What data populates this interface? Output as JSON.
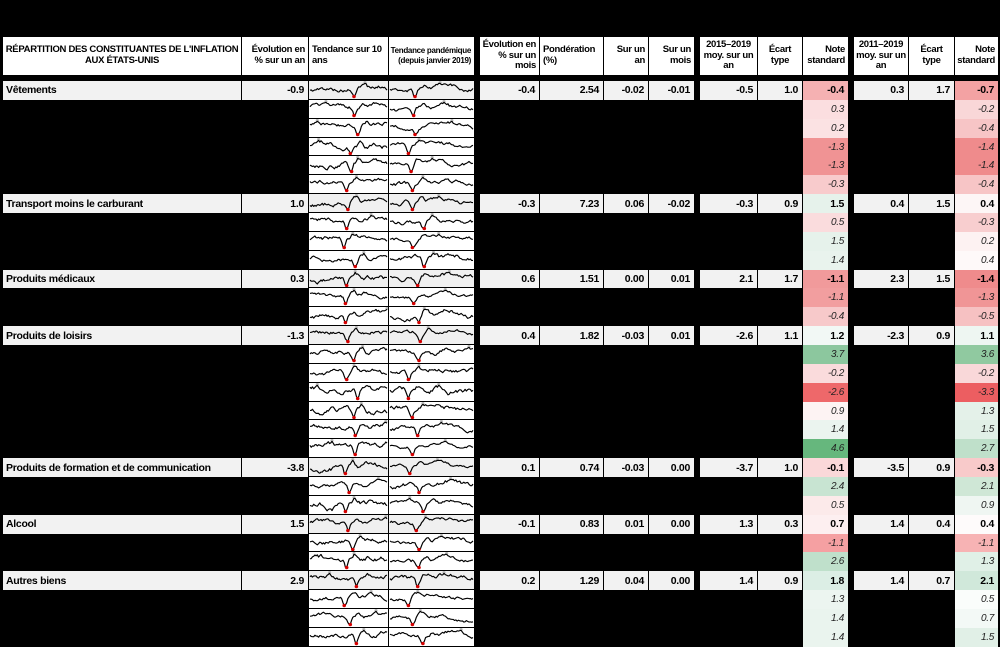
{
  "colors": {
    "page_bg": "#000000",
    "category_row_bg": "#f2f2f2",
    "header_bg": "#ffffff",
    "sparkline_line": "#000000",
    "sparkline_marker_red": "#d40000",
    "sparkline_marker_gray": "#bbbbbb",
    "note_negative_strong": "#ee686a",
    "note_positive_strong": "#66b77d"
  },
  "chart_data": {
    "type": "table",
    "title": "RÉPARTITION DES CONSTITUANTES DE L'INFLATION AUX ÉTATS-UNIS",
    "headers": {
      "title": "RÉPARTITION DES CONSTITUANTES DE L'INFLATION AUX ÉTATS-UNIS",
      "evolution_an": "Évolution en % sur un an",
      "tendance_10ans": "Tendance sur 10 ans",
      "tendance_pandemique": "Tendance pandémique (depuis janvier 2019)",
      "evolution_mois": "Évolution en % sur un mois",
      "ponderation": "Pondération (%)",
      "sur_un_an": "Sur un an",
      "sur_un_mois": "Sur un mois",
      "moy_2015_2019": "2015–2019 moy. sur un an",
      "ecart_type": "Écart type",
      "note_standard": "Note standard",
      "moy_2011_2019": "2011–2019 moy. sur un an"
    },
    "sections": [
      {
        "label": "Vêtements",
        "evolution_an": "-0.9",
        "evolution_mois": "-0.4",
        "ponderation": "2.54",
        "sur_un_an": "-0.02",
        "sur_un_mois": "-0.01",
        "moy_2015_2019": "-0.5",
        "ecart_type_1": "1.0",
        "note_1": "-0.4",
        "note_1_bg": "#f5b1b2",
        "moy_2011_2019": "0.3",
        "ecart_type_2": "1.7",
        "note_2": "-0.7",
        "note_2_bg": "#f3a2a3",
        "subrows": [
          {
            "note_1": "0.3",
            "note_1_bg": "#fbdee0",
            "note_2": "-0.2",
            "note_2_bg": "#f9d7d8"
          },
          {
            "note_1": "0.2",
            "note_1_bg": "#fbe2e3",
            "note_2": "-0.4",
            "note_2_bg": "#f7c5c6"
          },
          {
            "note_1": "-1.3",
            "note_1_bg": "#f09394",
            "note_2": "-1.4",
            "note_2_bg": "#ef8b8c"
          },
          {
            "note_1": "-1.3",
            "note_1_bg": "#f09394",
            "note_2": "-1.4",
            "note_2_bg": "#ef8b8c"
          },
          {
            "note_1": "-0.3",
            "note_1_bg": "#f8cbcc",
            "note_2": "-0.4",
            "note_2_bg": "#f7c5c6"
          }
        ]
      },
      {
        "label": "Transport moins le carburant",
        "evolution_an": "1.0",
        "evolution_mois": "-0.3",
        "ponderation": "7.23",
        "sur_un_an": "0.06",
        "sur_un_mois": "-0.02",
        "moy_2015_2019": "-0.3",
        "ecart_type_1": "0.9",
        "note_1": "1.5",
        "note_1_bg": "#e6f2eb",
        "moy_2011_2019": "0.4",
        "ecart_type_2": "1.5",
        "note_2": "0.4",
        "note_2_bg": "#fdf6f6",
        "subrows": [
          {
            "note_1": "0.5",
            "note_1_bg": "#fadcdd",
            "note_2": "-0.3",
            "note_2_bg": "#f8cecf"
          },
          {
            "note_1": "1.5",
            "note_1_bg": "#e6f2eb",
            "note_2": "0.2",
            "note_2_bg": "#fdf2f2"
          },
          {
            "note_1": "1.4",
            "note_1_bg": "#e9f3ed",
            "note_2": "0.4",
            "note_2_bg": "#fef9f9"
          }
        ]
      },
      {
        "label": "Produits médicaux",
        "evolution_an": "0.3",
        "evolution_mois": "0.6",
        "ponderation": "1.51",
        "sur_un_an": "0.00",
        "sur_un_mois": "0.01",
        "moy_2015_2019": "2.1",
        "ecart_type_1": "1.7",
        "note_1": "-1.1",
        "note_1_bg": "#f19a9b",
        "moy_2011_2019": "2.3",
        "ecart_type_2": "1.5",
        "note_2": "-1.4",
        "note_2_bg": "#ef8b8c",
        "subrows": [
          {
            "note_1": "-1.1",
            "note_1_bg": "#f29e9f",
            "note_2": "-1.3",
            "note_2_bg": "#f09596"
          },
          {
            "note_1": "-0.4",
            "note_1_bg": "#f7c9ca",
            "note_2": "-0.5",
            "note_2_bg": "#f6c1c2"
          }
        ]
      },
      {
        "label": "Produits de loisirs",
        "evolution_an": "-1.3",
        "evolution_mois": "0.4",
        "ponderation": "1.82",
        "sur_un_an": "-0.03",
        "sur_un_mois": "0.01",
        "moy_2015_2019": "-2.6",
        "ecart_type_1": "1.1",
        "note_1": "1.2",
        "note_1_bg": "#f2f8f5",
        "moy_2011_2019": "-2.3",
        "ecart_type_2": "0.9",
        "note_2": "1.1",
        "note_2_bg": "#eef6f2",
        "subrows": [
          {
            "note_1": "3.7",
            "note_1_bg": "#8cc79e",
            "note_2": "3.6",
            "note_2_bg": "#90c9a0"
          },
          {
            "note_1": "-0.2",
            "note_1_bg": "#fadbdc",
            "note_2": "-0.2",
            "note_2_bg": "#f9d8d9"
          },
          {
            "note_1": "-2.6",
            "note_1_bg": "#ee686a",
            "note_2": "-3.3",
            "note_2_bg": "#ec5e61"
          },
          {
            "note_1": "0.9",
            "note_1_bg": "#fdf3f3",
            "note_2": "1.3",
            "note_2_bg": "#e4f1e9"
          },
          {
            "note_1": "1.4",
            "note_1_bg": "#ebf4ef",
            "note_2": "1.5",
            "note_2_bg": "#e1f0e7"
          },
          {
            "note_1": "4.6",
            "note_1_bg": "#66b77d",
            "note_2": "2.7",
            "note_2_bg": "#bfe0ca"
          }
        ]
      },
      {
        "label": "Produits de formation et de communication",
        "evolution_an": "-3.8",
        "evolution_mois": "0.1",
        "ponderation": "0.74",
        "sur_un_an": "-0.03",
        "sur_un_mois": "0.00",
        "moy_2015_2019": "-3.7",
        "ecart_type_1": "1.0",
        "note_1": "-0.1",
        "note_1_bg": "#fad8d9",
        "moy_2011_2019": "-3.5",
        "ecart_type_2": "0.9",
        "note_2": "-0.3",
        "note_2_bg": "#f8caca",
        "subrows": [
          {
            "note_1": "2.4",
            "note_1_bg": "#c8e4d2",
            "note_2": "2.1",
            "note_2_bg": "#cfe7d6"
          },
          {
            "note_1": "0.5",
            "note_1_bg": "#fceaea",
            "note_2": "0.9",
            "note_2_bg": "#eff6f2"
          }
        ]
      },
      {
        "label": "Alcool",
        "evolution_an": "1.5",
        "evolution_mois": "-0.1",
        "ponderation": "0.83",
        "sur_un_an": "0.01",
        "sur_un_mois": "0.00",
        "moy_2015_2019": "1.3",
        "ecart_type_1": "0.3",
        "note_1": "0.7",
        "note_1_bg": "#fdeff0",
        "moy_2011_2019": "1.4",
        "ecart_type_2": "0.4",
        "note_2": "0.4",
        "note_2_bg": "#fefbfb",
        "subrows": [
          {
            "note_1": "-1.1",
            "note_1_bg": "#f5a0a2",
            "note_2": "-1.1",
            "note_2_bg": "#f7b3b4"
          },
          {
            "note_1": "2.6",
            "note_1_bg": "#bfe0cb",
            "note_2": "1.3",
            "note_2_bg": "#e0f0e7"
          }
        ]
      },
      {
        "label": "Autres biens",
        "evolution_an": "2.9",
        "evolution_mois": "0.2",
        "ponderation": "1.29",
        "sur_un_an": "0.04",
        "sur_un_mois": "0.00",
        "moy_2015_2019": "1.4",
        "ecart_type_1": "0.9",
        "note_1": "1.8",
        "note_1_bg": "#dceee5",
        "moy_2011_2019": "1.4",
        "ecart_type_2": "0.7",
        "note_2": "2.1",
        "note_2_bg": "#d0e8da",
        "subrows": [
          {
            "note_1": "1.3",
            "note_1_bg": "#ecf5f0",
            "note_2": "0.5",
            "note_2_bg": "#fafdfb"
          },
          {
            "note_1": "1.4",
            "note_1_bg": "#eaf4ee",
            "note_2": "0.7",
            "note_2_bg": "#f3f9f6"
          },
          {
            "note_1": "1.4",
            "note_1_bg": "#eaf4ee",
            "note_2": "1.5",
            "note_2_bg": "#e1f0e7"
          }
        ]
      }
    ]
  }
}
